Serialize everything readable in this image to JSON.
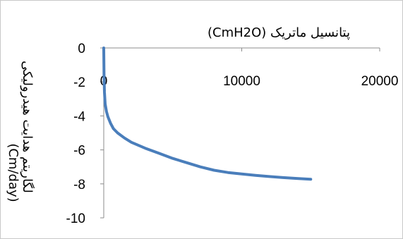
{
  "chart_data": {
    "type": "line",
    "xlabel": "پتانسیل ماتریک (CmH2O)",
    "ylabel_line1": "لگاریتم هدایت هیدرولیکی",
    "ylabel_line2": "(Cm/day)",
    "xlim": [
      0,
      20000
    ],
    "ylim": [
      -10,
      0
    ],
    "x_ticks": [
      0,
      10000,
      20000
    ],
    "y_ticks": [
      0,
      -2,
      -4,
      -6,
      -8,
      -10
    ],
    "x_tick_labels": [
      "0",
      "10000",
      "20000"
    ],
    "y_tick_labels": [
      "0",
      "-2",
      "-4",
      "-6",
      "-8",
      "-10"
    ],
    "x_axis_position": "top",
    "grid": false,
    "legend": "none",
    "series": [
      {
        "color": "#4a7ebb",
        "x": [
          0,
          20,
          50,
          100,
          200,
          300,
          500,
          700,
          1000,
          1500,
          2000,
          3000,
          4000,
          5000,
          6000,
          7000,
          8000,
          9000,
          10000,
          11000,
          12000,
          13000,
          14000,
          15000
        ],
        "y": [
          0,
          -1.6,
          -2.6,
          -3.3,
          -3.75,
          -4.05,
          -4.45,
          -4.75,
          -5.0,
          -5.3,
          -5.55,
          -5.9,
          -6.2,
          -6.5,
          -6.75,
          -7.0,
          -7.2,
          -7.33,
          -7.42,
          -7.5,
          -7.57,
          -7.63,
          -7.68,
          -7.73
        ]
      }
    ]
  }
}
